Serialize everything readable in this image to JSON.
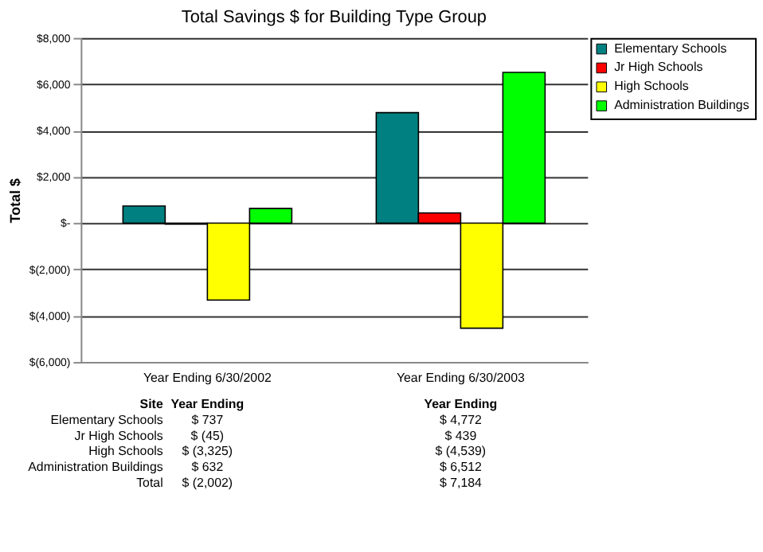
{
  "chart_data": {
    "type": "bar",
    "title": "Total Savings $ for Building Type Group",
    "ylabel": "Total $",
    "categories": [
      "Year Ending 6/30/2002",
      "Year Ending 6/30/2003"
    ],
    "series": [
      {
        "name": "Elementary Schools",
        "color": "#008080",
        "values": [
          737,
          4772
        ],
        "value_labels": [
          "$ 737",
          "$ 4,772"
        ]
      },
      {
        "name": "Jr High Schools",
        "color": "#ff0000",
        "values": [
          -45,
          439
        ],
        "value_labels": [
          "$ (45)",
          "$ 439"
        ]
      },
      {
        "name": "High Schools",
        "color": "#ffff00",
        "values": [
          -3325,
          -4539
        ],
        "value_labels": [
          "$ (3,325)",
          "$ (4,539)"
        ]
      },
      {
        "name": "Administration Buildings",
        "color": "#00ff00",
        "values": [
          632,
          6512
        ],
        "value_labels": [
          "$ 632",
          "$ 6,512"
        ]
      }
    ],
    "annotations": [
      "Site",
      "Year Ending",
      "Year Ending",
      "Total",
      "$ (2,002)",
      "$ 7,184"
    ],
    "ylim": [
      -6000,
      8000
    ],
    "yticks": [
      {
        "value": -6000,
        "label": "$(6,000)"
      },
      {
        "value": -4000,
        "label": "$(4,000)"
      },
      {
        "value": -2000,
        "label": "$(2,000)"
      },
      {
        "value": 0,
        "label": "$-"
      },
      {
        "value": 2000,
        "label": "$2,000"
      },
      {
        "value": 4000,
        "label": "$4,000"
      },
      {
        "value": 6000,
        "label": "$6,000"
      },
      {
        "value": 8000,
        "label": "$8,000"
      }
    ],
    "grid": "y",
    "legend": "right"
  }
}
